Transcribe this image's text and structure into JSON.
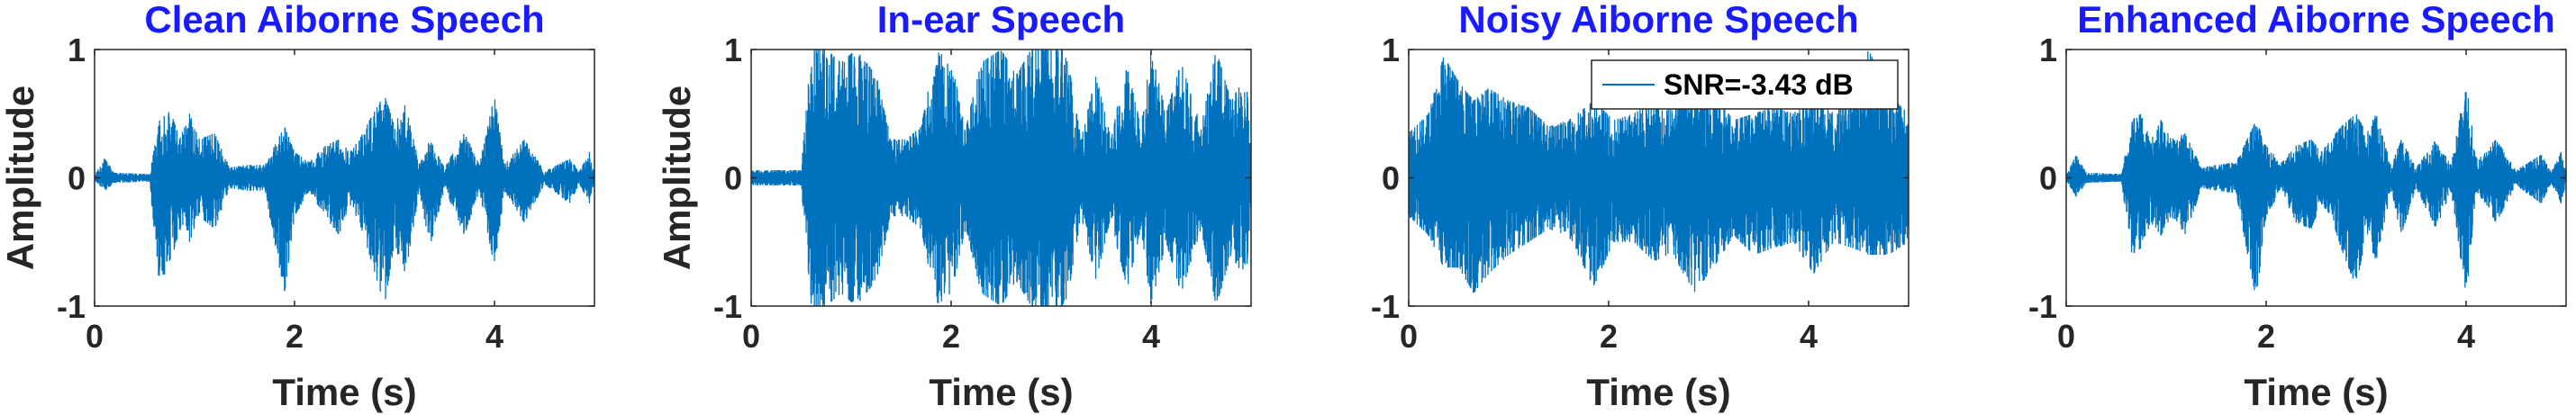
{
  "chart_data": [
    {
      "type": "line",
      "title": "Clean Aiborne Speech",
      "xlabel": "Time (s)",
      "ylabel": "Amplitude",
      "xlim": [
        0,
        5
      ],
      "ylim": [
        -1,
        1
      ],
      "xticks": [
        "0",
        "2",
        "4"
      ],
      "yticks": [
        "-1",
        "0",
        "1"
      ],
      "series_color": "#0072BD",
      "noise_floor": 0.02,
      "envelope": [
        {
          "x": 0.0,
          "pos": 0.02,
          "neg": 0.02
        },
        {
          "x": 0.1,
          "pos": 0.15,
          "neg": 0.1
        },
        {
          "x": 0.2,
          "pos": 0.04,
          "neg": 0.04
        },
        {
          "x": 0.55,
          "pos": 0.03,
          "neg": 0.03
        },
        {
          "x": 0.65,
          "pos": 0.45,
          "neg": 0.85
        },
        {
          "x": 0.75,
          "pos": 0.55,
          "neg": 0.7
        },
        {
          "x": 0.85,
          "pos": 0.3,
          "neg": 0.4
        },
        {
          "x": 0.95,
          "pos": 0.5,
          "neg": 0.5
        },
        {
          "x": 1.05,
          "pos": 0.3,
          "neg": 0.3
        },
        {
          "x": 1.2,
          "pos": 0.35,
          "neg": 0.4
        },
        {
          "x": 1.35,
          "pos": 0.08,
          "neg": 0.08
        },
        {
          "x": 1.5,
          "pos": 0.1,
          "neg": 0.1
        },
        {
          "x": 1.7,
          "pos": 0.1,
          "neg": 0.1
        },
        {
          "x": 1.9,
          "pos": 0.4,
          "neg": 0.9
        },
        {
          "x": 2.0,
          "pos": 0.2,
          "neg": 0.3
        },
        {
          "x": 2.15,
          "pos": 0.12,
          "neg": 0.1
        },
        {
          "x": 2.3,
          "pos": 0.25,
          "neg": 0.3
        },
        {
          "x": 2.45,
          "pos": 0.3,
          "neg": 0.45
        },
        {
          "x": 2.55,
          "pos": 0.2,
          "neg": 0.2
        },
        {
          "x": 2.65,
          "pos": 0.3,
          "neg": 0.35
        },
        {
          "x": 2.75,
          "pos": 0.45,
          "neg": 0.6
        },
        {
          "x": 2.9,
          "pos": 0.65,
          "neg": 1.0
        },
        {
          "x": 3.0,
          "pos": 0.4,
          "neg": 0.5
        },
        {
          "x": 3.1,
          "pos": 0.6,
          "neg": 0.8
        },
        {
          "x": 3.25,
          "pos": 0.1,
          "neg": 0.1
        },
        {
          "x": 3.35,
          "pos": 0.3,
          "neg": 0.55
        },
        {
          "x": 3.5,
          "pos": 0.08,
          "neg": 0.08
        },
        {
          "x": 3.7,
          "pos": 0.35,
          "neg": 0.45
        },
        {
          "x": 3.85,
          "pos": 0.1,
          "neg": 0.1
        },
        {
          "x": 4.0,
          "pos": 0.65,
          "neg": 0.7
        },
        {
          "x": 4.1,
          "pos": 0.1,
          "neg": 0.1
        },
        {
          "x": 4.3,
          "pos": 0.3,
          "neg": 0.35
        },
        {
          "x": 4.5,
          "pos": 0.05,
          "neg": 0.05
        },
        {
          "x": 4.75,
          "pos": 0.15,
          "neg": 0.2
        },
        {
          "x": 4.85,
          "pos": 0.05,
          "neg": 0.05
        },
        {
          "x": 4.95,
          "pos": 0.2,
          "neg": 0.2
        },
        {
          "x": 5.0,
          "pos": 0.04,
          "neg": 0.04
        }
      ]
    },
    {
      "type": "line",
      "title": "In-ear Speech",
      "xlabel": "Time (s)",
      "ylabel": "Amplitude",
      "xlim": [
        0,
        5
      ],
      "ylim": [
        -1,
        1
      ],
      "xticks": [
        "0",
        "2",
        "4"
      ],
      "yticks": [
        "-1",
        "0",
        "1"
      ],
      "series_color": "#0072BD",
      "noise_floor": 0.05,
      "envelope": [
        {
          "x": 0.0,
          "pos": 0.06,
          "neg": 0.06
        },
        {
          "x": 0.5,
          "pos": 0.06,
          "neg": 0.06
        },
        {
          "x": 0.6,
          "pos": 1.0,
          "neg": 1.0
        },
        {
          "x": 0.75,
          "pos": 1.0,
          "neg": 1.0
        },
        {
          "x": 0.9,
          "pos": 0.9,
          "neg": 0.9
        },
        {
          "x": 1.05,
          "pos": 1.0,
          "neg": 1.0
        },
        {
          "x": 1.25,
          "pos": 0.8,
          "neg": 0.8
        },
        {
          "x": 1.4,
          "pos": 0.3,
          "neg": 0.3
        },
        {
          "x": 1.55,
          "pos": 0.3,
          "neg": 0.3
        },
        {
          "x": 1.7,
          "pos": 0.4,
          "neg": 0.4
        },
        {
          "x": 1.85,
          "pos": 1.0,
          "neg": 1.0
        },
        {
          "x": 2.0,
          "pos": 0.9,
          "neg": 0.9
        },
        {
          "x": 2.15,
          "pos": 0.4,
          "neg": 0.4
        },
        {
          "x": 2.3,
          "pos": 0.9,
          "neg": 0.9
        },
        {
          "x": 2.5,
          "pos": 1.0,
          "neg": 1.0
        },
        {
          "x": 2.65,
          "pos": 0.8,
          "neg": 0.8
        },
        {
          "x": 2.8,
          "pos": 1.0,
          "neg": 1.0
        },
        {
          "x": 3.0,
          "pos": 1.0,
          "neg": 1.0
        },
        {
          "x": 3.15,
          "pos": 1.0,
          "neg": 1.0
        },
        {
          "x": 3.3,
          "pos": 0.3,
          "neg": 0.3
        },
        {
          "x": 3.45,
          "pos": 0.8,
          "neg": 0.8
        },
        {
          "x": 3.6,
          "pos": 0.3,
          "neg": 0.3
        },
        {
          "x": 3.75,
          "pos": 0.9,
          "neg": 0.9
        },
        {
          "x": 3.9,
          "pos": 0.4,
          "neg": 0.4
        },
        {
          "x": 4.0,
          "pos": 1.0,
          "neg": 1.0
        },
        {
          "x": 4.15,
          "pos": 0.5,
          "neg": 0.5
        },
        {
          "x": 4.3,
          "pos": 0.9,
          "neg": 0.9
        },
        {
          "x": 4.5,
          "pos": 0.4,
          "neg": 0.4
        },
        {
          "x": 4.65,
          "pos": 1.0,
          "neg": 1.0
        },
        {
          "x": 4.8,
          "pos": 0.6,
          "neg": 0.6
        },
        {
          "x": 4.95,
          "pos": 0.8,
          "neg": 0.8
        },
        {
          "x": 5.0,
          "pos": 0.2,
          "neg": 0.2
        }
      ]
    },
    {
      "type": "line",
      "title": "Noisy Aiborne Speech",
      "xlabel": "Time (s)",
      "ylabel": "",
      "xlim": [
        0,
        5
      ],
      "ylim": [
        -1,
        1
      ],
      "xticks": [
        "0",
        "2",
        "4"
      ],
      "yticks": [
        "-1",
        "0",
        "1"
      ],
      "series_color": "#0072BD",
      "noise_floor": 0.3,
      "legend": {
        "entries": [
          "SNR=-3.43 dB"
        ],
        "placement": "top-right"
      },
      "envelope": [
        {
          "x": 0.0,
          "pos": 0.35,
          "neg": 0.3
        },
        {
          "x": 0.2,
          "pos": 0.5,
          "neg": 0.45
        },
        {
          "x": 0.35,
          "pos": 0.95,
          "neg": 0.7
        },
        {
          "x": 0.5,
          "pos": 0.75,
          "neg": 0.7
        },
        {
          "x": 0.65,
          "pos": 0.6,
          "neg": 0.9
        },
        {
          "x": 0.8,
          "pos": 0.7,
          "neg": 0.75
        },
        {
          "x": 1.0,
          "pos": 0.6,
          "neg": 0.6
        },
        {
          "x": 1.2,
          "pos": 0.55,
          "neg": 0.5
        },
        {
          "x": 1.4,
          "pos": 0.4,
          "neg": 0.4
        },
        {
          "x": 1.6,
          "pos": 0.45,
          "neg": 0.45
        },
        {
          "x": 1.85,
          "pos": 0.6,
          "neg": 0.85
        },
        {
          "x": 2.05,
          "pos": 0.45,
          "neg": 0.5
        },
        {
          "x": 2.25,
          "pos": 0.5,
          "neg": 0.5
        },
        {
          "x": 2.45,
          "pos": 0.6,
          "neg": 0.65
        },
        {
          "x": 2.65,
          "pos": 0.6,
          "neg": 0.6
        },
        {
          "x": 2.85,
          "pos": 0.75,
          "neg": 0.9
        },
        {
          "x": 3.05,
          "pos": 0.65,
          "neg": 0.7
        },
        {
          "x": 3.25,
          "pos": 0.45,
          "neg": 0.45
        },
        {
          "x": 3.45,
          "pos": 0.5,
          "neg": 0.6
        },
        {
          "x": 3.65,
          "pos": 0.55,
          "neg": 0.55
        },
        {
          "x": 3.85,
          "pos": 0.5,
          "neg": 0.5
        },
        {
          "x": 4.05,
          "pos": 0.7,
          "neg": 0.75
        },
        {
          "x": 4.25,
          "pos": 0.5,
          "neg": 0.5
        },
        {
          "x": 4.45,
          "pos": 0.7,
          "neg": 0.55
        },
        {
          "x": 4.6,
          "pos": 1.0,
          "neg": 0.6
        },
        {
          "x": 4.8,
          "pos": 0.65,
          "neg": 0.6
        },
        {
          "x": 5.0,
          "pos": 0.5,
          "neg": 0.5
        }
      ]
    },
    {
      "type": "line",
      "title": "Enhanced Aiborne Speech",
      "xlabel": "Time (s)",
      "ylabel": "",
      "xlim": [
        0,
        5
      ],
      "ylim": [
        -1,
        1
      ],
      "xticks": [
        "0",
        "2",
        "4"
      ],
      "yticks": [
        "-1",
        "0",
        "1"
      ],
      "series_color": "#0072BD",
      "noise_floor": 0.02,
      "envelope": [
        {
          "x": 0.0,
          "pos": 0.02,
          "neg": 0.02
        },
        {
          "x": 0.1,
          "pos": 0.18,
          "neg": 0.15
        },
        {
          "x": 0.2,
          "pos": 0.04,
          "neg": 0.04
        },
        {
          "x": 0.55,
          "pos": 0.03,
          "neg": 0.03
        },
        {
          "x": 0.65,
          "pos": 0.45,
          "neg": 0.6
        },
        {
          "x": 0.75,
          "pos": 0.5,
          "neg": 0.55
        },
        {
          "x": 0.85,
          "pos": 0.3,
          "neg": 0.35
        },
        {
          "x": 0.95,
          "pos": 0.45,
          "neg": 0.45
        },
        {
          "x": 1.05,
          "pos": 0.3,
          "neg": 0.3
        },
        {
          "x": 1.2,
          "pos": 0.35,
          "neg": 0.45
        },
        {
          "x": 1.35,
          "pos": 0.08,
          "neg": 0.08
        },
        {
          "x": 1.5,
          "pos": 0.1,
          "neg": 0.1
        },
        {
          "x": 1.7,
          "pos": 0.12,
          "neg": 0.12
        },
        {
          "x": 1.9,
          "pos": 0.45,
          "neg": 0.95
        },
        {
          "x": 2.0,
          "pos": 0.25,
          "neg": 0.3
        },
        {
          "x": 2.15,
          "pos": 0.12,
          "neg": 0.1
        },
        {
          "x": 2.3,
          "pos": 0.25,
          "neg": 0.35
        },
        {
          "x": 2.45,
          "pos": 0.3,
          "neg": 0.4
        },
        {
          "x": 2.55,
          "pos": 0.2,
          "neg": 0.2
        },
        {
          "x": 2.65,
          "pos": 0.3,
          "neg": 0.3
        },
        {
          "x": 2.75,
          "pos": 0.4,
          "neg": 0.55
        },
        {
          "x": 2.9,
          "pos": 0.5,
          "neg": 0.85
        },
        {
          "x": 3.0,
          "pos": 0.35,
          "neg": 0.45
        },
        {
          "x": 3.1,
          "pos": 0.5,
          "neg": 0.65
        },
        {
          "x": 3.25,
          "pos": 0.1,
          "neg": 0.1
        },
        {
          "x": 3.35,
          "pos": 0.3,
          "neg": 0.45
        },
        {
          "x": 3.5,
          "pos": 0.08,
          "neg": 0.08
        },
        {
          "x": 3.7,
          "pos": 0.3,
          "neg": 0.4
        },
        {
          "x": 3.85,
          "pos": 0.1,
          "neg": 0.1
        },
        {
          "x": 4.0,
          "pos": 0.75,
          "neg": 0.95
        },
        {
          "x": 4.1,
          "pos": 0.15,
          "neg": 0.1
        },
        {
          "x": 4.3,
          "pos": 0.3,
          "neg": 0.35
        },
        {
          "x": 4.5,
          "pos": 0.06,
          "neg": 0.06
        },
        {
          "x": 4.75,
          "pos": 0.18,
          "neg": 0.2
        },
        {
          "x": 4.85,
          "pos": 0.05,
          "neg": 0.05
        },
        {
          "x": 4.95,
          "pos": 0.2,
          "neg": 0.2
        },
        {
          "x": 5.0,
          "pos": 0.04,
          "neg": 0.04
        }
      ]
    }
  ]
}
